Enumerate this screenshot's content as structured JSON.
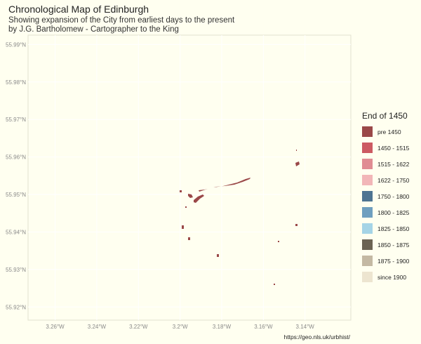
{
  "title": "Chronological Map of Edinburgh",
  "subtitle_line1": "Showing expansion of the City from earliest days to the present",
  "subtitle_line2": "by J.G. Bartholomew - Cartographer to the King",
  "caption": "https://geo.nls.uk/urbhist/",
  "colors": {
    "background": "#fffff0",
    "panel_border": "#e2e2d0",
    "axis_text": "#8a8a8a",
    "grid": "#ffffff"
  },
  "axes": {
    "y_ticks": [
      "55.99°N",
      "55.98°N",
      "55.97°N",
      "55.96°N",
      "55.95°N",
      "55.94°N",
      "55.93°N",
      "55.92°N"
    ],
    "x_ticks": [
      "3.26°W",
      "3.24°W",
      "3.22°W",
      "3.2°W",
      "3.18°W",
      "3.16°W",
      "3.14°W"
    ],
    "x_range": [
      -3.273,
      -3.118
    ],
    "y_range": [
      55.9165,
      55.9925
    ],
    "y_tick_values": [
      55.99,
      55.98,
      55.97,
      55.96,
      55.95,
      55.94,
      55.93,
      55.92
    ],
    "x_tick_values": [
      -3.26,
      -3.24,
      -3.22,
      -3.2,
      -3.18,
      -3.16,
      -3.14
    ]
  },
  "legend": {
    "title": "End of 1450",
    "items": [
      {
        "label": "pre 1450",
        "color": "#9a4848"
      },
      {
        "label": "1450 - 1515",
        "color": "#cc5a62"
      },
      {
        "label": "1515 - 1622",
        "color": "#e08c93"
      },
      {
        "label": "1622 - 1750",
        "color": "#f2b6b8"
      },
      {
        "label": "1750 - 1800",
        "color": "#4e7492"
      },
      {
        "label": "1800 - 1825",
        "color": "#6f9fbf"
      },
      {
        "label": "1825 - 1850",
        "color": "#a5d4e6"
      },
      {
        "label": "1850 - 1875",
        "color": "#6b6353"
      },
      {
        "label": "1875 - 1900",
        "color": "#c4b9a3"
      },
      {
        "label": "since 1900",
        "color": "#ede5d0"
      }
    ]
  },
  "features": {
    "period": "pre 1450",
    "color": "#9a4848"
  }
}
